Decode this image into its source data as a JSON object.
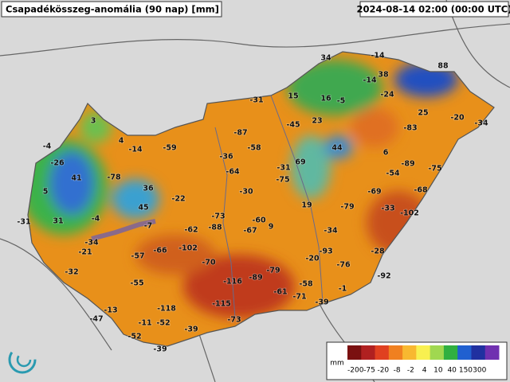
{
  "header": {
    "title": "Csapadékösszeg-anomália (90 nap) [mm]",
    "timestamp": "2024-08-14 02:00 (00:00 UTC)"
  },
  "labels": [
    "-31",
    "34",
    "-14",
    "88",
    "38",
    "-14",
    "15",
    "16",
    "-5",
    "-24",
    "25",
    "-20",
    "-34",
    "3",
    "-87",
    "-45",
    "23",
    "-83",
    "-4",
    "4",
    "-14",
    "-59",
    "-58",
    "44",
    "6",
    "-26",
    "-36",
    "-31",
    "69",
    "-89",
    "-75",
    "41",
    "-78",
    "-64",
    "-75",
    "-54",
    "36",
    "-30",
    "-69",
    "-68",
    "5",
    "-22",
    "19",
    "-79",
    "-33",
    "-102",
    "45",
    "-73",
    "-60",
    "-31",
    "31",
    "-4",
    "-7",
    "9",
    "-62",
    "-88",
    "-67",
    "-34",
    "-34",
    "-21",
    "-102",
    "-66",
    "-57",
    "-93",
    "-28",
    "-20",
    "-70",
    "-76",
    "-32",
    "-79",
    "-92",
    "-116",
    "-89",
    "-55",
    "-58",
    "-1",
    "-61",
    "-71",
    "-118",
    "-13",
    "-115",
    "-39",
    "-47",
    "-11",
    "-52",
    "-73",
    "-39",
    "-52",
    "-39"
  ],
  "legend": {
    "unit": "mm",
    "ticks": [
      "-200",
      "-75",
      "-20",
      "-8",
      "-2",
      "4",
      "10",
      "40",
      "150",
      "300"
    ]
  }
}
